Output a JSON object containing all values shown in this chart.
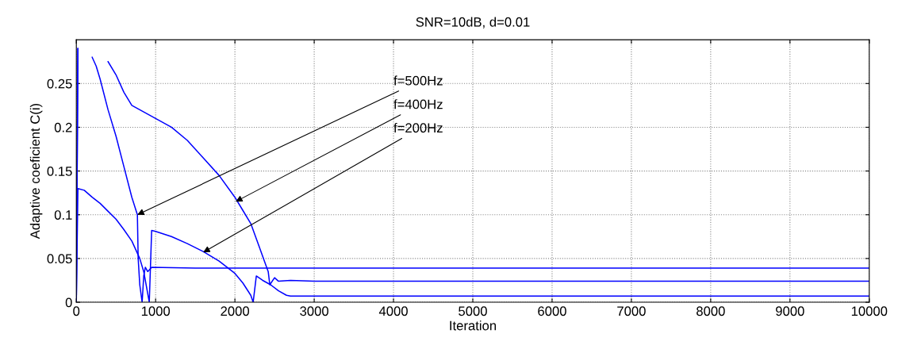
{
  "chart_data": {
    "type": "line",
    "title": "SNR=10dB, d=0.01",
    "xlabel": "Iteration",
    "ylabel": "Adaptive coeficient C(i)",
    "xlim": [
      0,
      10000
    ],
    "xticks": [
      0,
      1000,
      2000,
      3000,
      4000,
      5000,
      6000,
      7000,
      8000,
      9000,
      10000
    ],
    "ylim": [
      0,
      0.3
    ],
    "yticks": [
      0,
      0.05,
      0.1,
      0.15,
      0.2,
      0.25
    ],
    "grid": true,
    "marker": "none",
    "line_style": "solid",
    "series": [
      {
        "color": "#0000ff",
        "x": [
          0,
          20,
          100,
          200,
          250,
          300,
          400,
          500,
          600,
          700,
          770,
          780,
          800,
          830,
          850,
          870,
          900,
          950,
          1500,
          2000,
          3000,
          10000
        ],
        "values": [
          0,
          0.29,
          null,
          0.28,
          0.27,
          0.255,
          0.22,
          0.19,
          0.155,
          0.12,
          0.1,
          0.05,
          0.02,
          0,
          0.03,
          0.04,
          0.035,
          0.04,
          0.039,
          0.039,
          0.039,
          0.039
        ]
      },
      {
        "color": "#0000ff",
        "x": [
          0,
          20,
          250,
          400,
          500,
          600,
          700,
          800,
          1000,
          1200,
          1400,
          1600,
          1800,
          2000,
          2100,
          2200,
          2300,
          2400,
          2420,
          2440,
          2500,
          2550,
          2700,
          3000,
          10000
        ],
        "values": [
          0,
          0.29,
          null,
          0.275,
          0.26,
          0.24,
          0.225,
          0.22,
          0.21,
          0.2,
          0.185,
          0.165,
          0.145,
          0.12,
          0.105,
          0.09,
          0.065,
          0.04,
          0.035,
          0.02,
          0.028,
          0.024,
          0.025,
          0.024,
          0.024
        ]
      },
      {
        "color": "#0000ff",
        "x": [
          0,
          20,
          100,
          200,
          300,
          400,
          500,
          600,
          700,
          800,
          850,
          880,
          920,
          950,
          1000,
          1200,
          1400,
          1600,
          1800,
          2000,
          2100,
          2200,
          2230,
          2270,
          2350,
          2450,
          2550,
          2650,
          2700,
          10000
        ],
        "values": [
          0,
          0.13,
          0.128,
          0.12,
          0.113,
          0.104,
          0.095,
          0.083,
          0.07,
          0.05,
          0.035,
          0.02,
          0,
          0.082,
          0.081,
          0.075,
          0.067,
          0.058,
          0.047,
          0.033,
          0.022,
          0.008,
          0,
          0.03,
          0.025,
          0.02,
          0.013,
          0.008,
          0.007,
          0.007
        ]
      }
    ],
    "annotations": [
      {
        "text": "f=500Hz",
        "x": 770,
        "y": 0.1
      },
      {
        "text": "f=400Hz",
        "x": 2010,
        "y": 0.115
      },
      {
        "text": "f=200Hz",
        "x": 1600,
        "y": 0.057
      }
    ]
  }
}
